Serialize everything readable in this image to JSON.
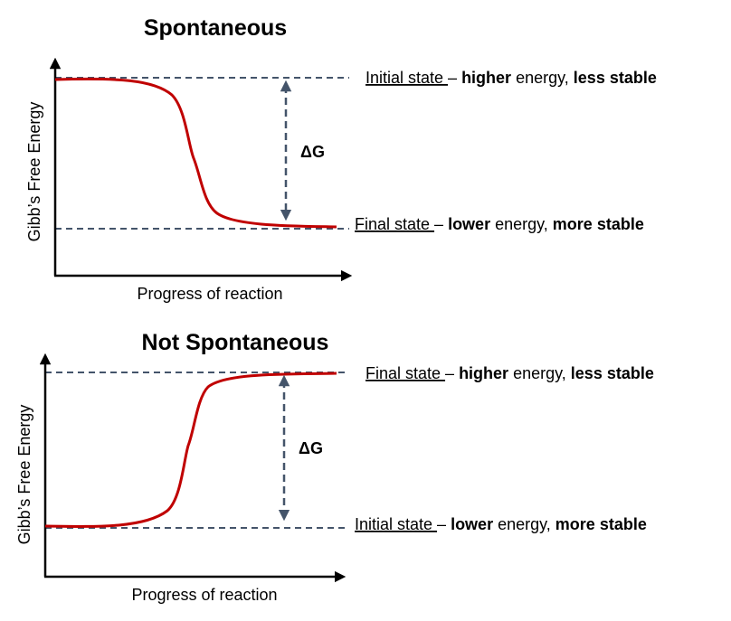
{
  "colors": {
    "curve": "#c00000",
    "dashed": "#44546a",
    "axis": "#000000"
  },
  "diagrams": [
    {
      "title": "Spontaneous",
      "ylabel": "Gibb’s Free Energy",
      "xlabel": "Progress of reaction",
      "delta_label": "ΔG",
      "top_state": {
        "name": "Initial state ",
        "sep": "– ",
        "level": "higher",
        "mid": " energy, ",
        "stability": "less stable"
      },
      "bottom_state": {
        "name": "Final state ",
        "sep": "– ",
        "level": "lower",
        "mid": " energy, ",
        "stability": "more stable"
      }
    },
    {
      "title": "Not Spontaneous",
      "ylabel": "Gibb’s Free Energy",
      "xlabel": "Progress of reaction",
      "delta_label": "ΔG",
      "top_state": {
        "name": "Final state ",
        "sep": "– ",
        "level": "higher",
        "mid": " energy, ",
        "stability": "less stable"
      },
      "bottom_state": {
        "name": "Initial state ",
        "sep": "– ",
        "level": "lower",
        "mid": " energy, ",
        "stability": "more stable"
      }
    }
  ]
}
